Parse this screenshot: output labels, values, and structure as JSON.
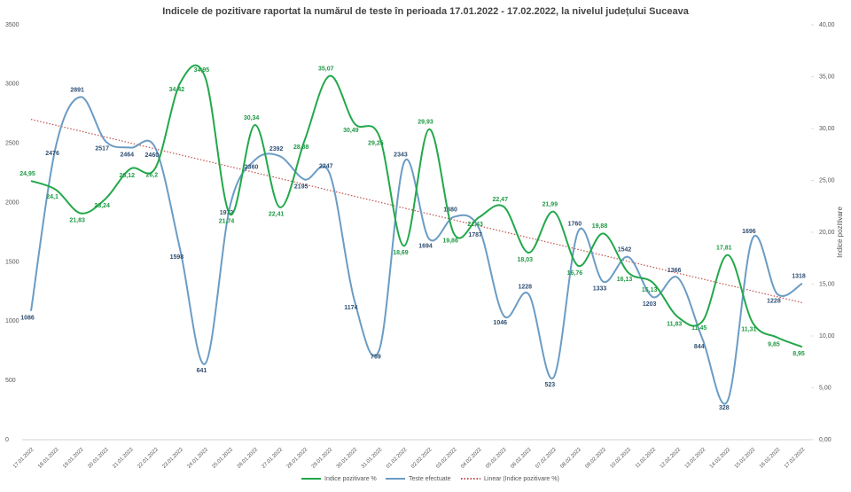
{
  "chart_data": {
    "type": "line",
    "title": "Indicele de pozitivare  raportat la numărul  de teste în perioada  17.01.2022 - 17.02.2022, la nivelul județului  Suceava",
    "y2label": "Indice pozitivare",
    "categories": [
      "17.01.2022",
      "18.01.2022",
      "19.01.2022",
      "20.01.2022",
      "21.01.2022",
      "22.01.2022",
      "23.01.2022",
      "24.01.2022",
      "25.01.2022",
      "26.01.2022",
      "27.01.2022",
      "28.01.2022",
      "29.01.2022",
      "30.01.2022",
      "31.01.2022",
      "01.02.2022",
      "02.02.2022",
      "03.02.2022",
      "04.02.2022",
      "05.02.2022",
      "06.02.2022",
      "07.02.2022",
      "08.02.2022",
      "09.02.2022",
      "10.02.2022",
      "11.02.2022",
      "12.02.2022",
      "13.02.2022",
      "14.02.2022",
      "15.02.2022",
      "16.02.2022",
      "17.02.2022"
    ],
    "ylim": [
      0,
      3500
    ],
    "yticks": [
      0,
      500,
      1000,
      1500,
      2000,
      2500,
      3000,
      3500
    ],
    "y2lim": [
      0,
      40
    ],
    "y2ticks": [
      {
        "value": 0,
        "label": "0,00"
      },
      {
        "value": 5,
        "label": "5,00"
      },
      {
        "value": 10,
        "label": "10,00"
      },
      {
        "value": 15,
        "label": "15,00"
      },
      {
        "value": 20,
        "label": "20,00"
      },
      {
        "value": 25,
        "label": "25,00"
      },
      {
        "value": 30,
        "label": "30,00"
      },
      {
        "value": 35,
        "label": "35,00"
      },
      {
        "value": 40,
        "label": "40,00"
      }
    ],
    "series": [
      {
        "name": "Indice pozitivare %",
        "color": "#22a84a",
        "axis": "y2",
        "values": [
          24.95,
          24.1,
          21.83,
          23.24,
          26.12,
          26.2,
          34.42,
          34.95,
          21.74,
          30.34,
          22.41,
          28.88,
          35.07,
          30.49,
          29.25,
          18.69,
          29.93,
          19.86,
          21.43,
          22.47,
          18.03,
          21.99,
          16.76,
          19.88,
          16.13,
          15.13,
          11.83,
          11.45,
          17.81,
          11.31,
          9.85,
          8.95
        ],
        "value_labels": [
          "24,95",
          "24,1",
          "21,83",
          "23,24",
          "26,12",
          "26,2",
          "34,42",
          "34,95",
          "21,74",
          "30,34",
          "22,41",
          "28,88",
          "35,07",
          "30,49",
          "29,25",
          "18,69",
          "29,93",
          "19,86",
          "21,43",
          "22,47",
          "18,03",
          "21,99",
          "16,76",
          "19,88",
          "16,13",
          "15,13",
          "11,83",
          "11,45",
          "17,81",
          "11,31",
          "9,85",
          "8,95"
        ]
      },
      {
        "name": "Teste efectuate",
        "color": "#6b9cc4",
        "values": [
          1086,
          2476,
          2891,
          2517,
          2464,
          2460,
          1598,
          641,
          1972,
          2360,
          2392,
          2195,
          2247,
          1174,
          759,
          2343,
          1694,
          1880,
          1787,
          1046,
          1228,
          523,
          1760,
          1333,
          1542,
          1203,
          1366,
          844,
          328,
          1696,
          1228,
          1318
        ]
      }
    ],
    "trendline": {
      "name": "Linear (Indice pozitivare %)",
      "color": "#c0504d"
    }
  }
}
